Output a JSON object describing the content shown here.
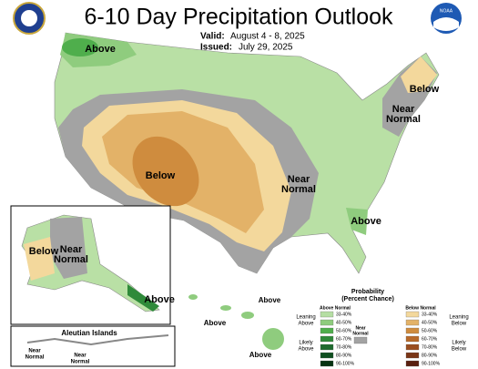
{
  "header": {
    "title": "6-10 Day Precipitation Outlook",
    "valid_label": "Valid:",
    "valid": "August 4 - 8, 2025",
    "issued_label": "Issued:",
    "issued": "July 29, 2025",
    "logo": "NOAA"
  },
  "map_labels": {
    "northwest": [
      "Above"
    ],
    "northeast_below": [
      "Below"
    ],
    "northeast_near": [
      "Near",
      "Normal"
    ],
    "southwest": [
      "Below"
    ],
    "central": [
      "Near",
      "Normal"
    ],
    "southeast": [
      "Above"
    ],
    "alaska_below": [
      "Below"
    ],
    "alaska_near": [
      "Near",
      "Normal"
    ],
    "alaska_above": [
      "Above"
    ],
    "hawaii": [
      "Above",
      "Above",
      "Above"
    ],
    "aleutian_title": "Aleutian Islands",
    "aleutian_near": [
      [
        "Near",
        "Normal"
      ],
      [
        "Near",
        "Normal"
      ]
    ]
  },
  "legend": {
    "title": [
      "Probability",
      "(Percent Chance)"
    ],
    "above_header": "Above Normal",
    "below_header": "Below Normal",
    "leaning_above": [
      "Leaning",
      "Above"
    ],
    "likely_above": [
      "Likely",
      "Above"
    ],
    "near": [
      "Near",
      "Normal"
    ],
    "near_color": "#a3a3a3",
    "leaning_below": [
      "Leaning",
      "Below"
    ],
    "likely_below": [
      "Likely",
      "Below"
    ],
    "above_bins": [
      {
        "label": "33-40%",
        "color": "#b5dea3"
      },
      {
        "label": "40-50%",
        "color": "#8fcc7e"
      },
      {
        "label": "50-60%",
        "color": "#4fae4c"
      },
      {
        "label": "60-70%",
        "color": "#2f8a3a"
      },
      {
        "label": "70-80%",
        "color": "#1e6b2e"
      },
      {
        "label": "80-90%",
        "color": "#0f4f20"
      },
      {
        "label": "90-100%",
        "color": "#073312"
      }
    ],
    "below_bins": [
      {
        "label": "33-40%",
        "color": "#f3d89c"
      },
      {
        "label": "40-50%",
        "color": "#e3b268"
      },
      {
        "label": "50-60%",
        "color": "#cf8c3e"
      },
      {
        "label": "60-70%",
        "color": "#b86a2a"
      },
      {
        "label": "70-80%",
        "color": "#9a4e20"
      },
      {
        "label": "80-90%",
        "color": "#7a3516"
      },
      {
        "label": "90-100%",
        "color": "#5a2010"
      }
    ]
  }
}
